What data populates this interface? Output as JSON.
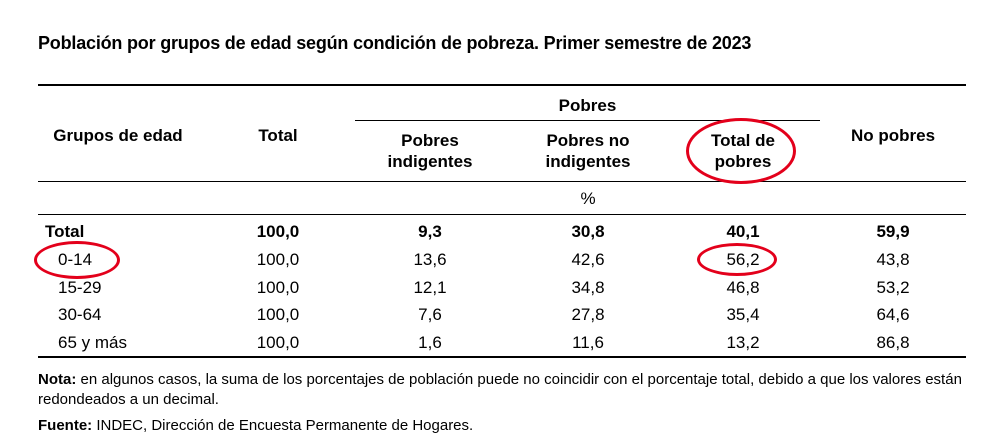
{
  "title": "Población por grupos de edad según condición de pobreza. Primer semestre de 2023",
  "headers": {
    "grupos": "Grupos de edad",
    "total": "Total",
    "pobres": "Pobres",
    "indigentes_1": "Pobres",
    "indigentes_2": "indigentes",
    "no_indigentes_1": "Pobres no",
    "no_indigentes_2": "indigentes",
    "total_pobres_1": "Total de",
    "total_pobres_2": "pobres",
    "no_pobres": "No pobres",
    "unit": "%"
  },
  "rows": [
    {
      "label": "Total",
      "total": "100,0",
      "indigentes": "9,3",
      "no_indigentes": "30,8",
      "total_pobres": "40,1",
      "no_pobres": "59,9"
    },
    {
      "label": "0-14",
      "total": "100,0",
      "indigentes": "13,6",
      "no_indigentes": "42,6",
      "total_pobres": "56,2",
      "no_pobres": "43,8"
    },
    {
      "label": "15-29",
      "total": "100,0",
      "indigentes": "12,1",
      "no_indigentes": "34,8",
      "total_pobres": "46,8",
      "no_pobres": "53,2"
    },
    {
      "label": "30-64",
      "total": "100,0",
      "indigentes": "7,6",
      "no_indigentes": "27,8",
      "total_pobres": "35,4",
      "no_pobres": "64,6"
    },
    {
      "label": "65 y más",
      "total": "100,0",
      "indigentes": "1,6",
      "no_indigentes": "11,6",
      "total_pobres": "13,2",
      "no_pobres": "86,8"
    }
  ],
  "note": {
    "label": "Nota:",
    "text": " en algunos casos, la suma de los porcentajes de población puede no coincidir con el porcentaje total, debido a que los valores están redondeados a un decimal."
  },
  "source": {
    "label": "Fuente:",
    "text": " INDEC, Dirección de Encuesta Permanente de Hogares."
  },
  "annotation_color": "#e3001b"
}
